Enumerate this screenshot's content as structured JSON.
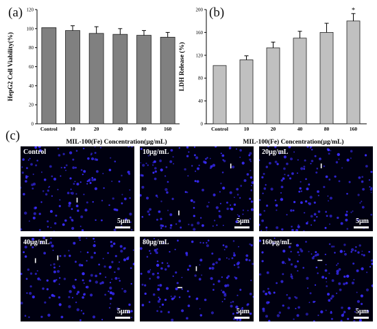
{
  "chart_data": [
    {
      "type": "bar",
      "panel_label": "(a)",
      "categories": [
        "Control",
        "10",
        "20",
        "40",
        "80",
        "160"
      ],
      "values": [
        101,
        98,
        95,
        94,
        93,
        91
      ],
      "errors": [
        0,
        5,
        7,
        6,
        5,
        5
      ],
      "significance": [
        "",
        "",
        "",
        "",
        "",
        ""
      ],
      "ylabel": "HepG2 Cell Viability(%)",
      "xlabel": "MIL-100(Fe) Concentration(μg/mL)",
      "ylim": [
        0,
        120
      ],
      "yticks": [
        0,
        20,
        40,
        60,
        80,
        100,
        120
      ],
      "bar_color": "#808080",
      "grid": false
    },
    {
      "type": "bar",
      "panel_label": "(b)",
      "categories": [
        "Control",
        "10",
        "20",
        "40",
        "80",
        "160"
      ],
      "values": [
        102,
        112,
        133,
        150,
        160,
        180
      ],
      "errors": [
        0,
        7,
        10,
        12,
        16,
        13
      ],
      "significance": [
        "",
        "",
        "",
        "",
        "",
        "*"
      ],
      "ylabel": "LDH Release (%)",
      "xlabel": "MIL-100(Fe) Concentration(μg/mL)",
      "ylim": [
        0,
        200
      ],
      "yticks": [
        0,
        40,
        80,
        120,
        160,
        200
      ],
      "bar_color": "#c0c0c0",
      "grid": false
    }
  ],
  "panel_c": {
    "label": "(c)",
    "images": [
      {
        "label": "Control",
        "scale": "5μm"
      },
      {
        "label": "10μg/mL",
        "scale": "5μm"
      },
      {
        "label": "20μg/mL",
        "scale": "5μm"
      },
      {
        "label": "40μg/mL",
        "scale": "5μm"
      },
      {
        "label": "80μg/mL",
        "scale": "5μm"
      },
      {
        "label": "160μg/mL",
        "scale": "5μm"
      }
    ],
    "cell_color": "#3a2cff"
  }
}
